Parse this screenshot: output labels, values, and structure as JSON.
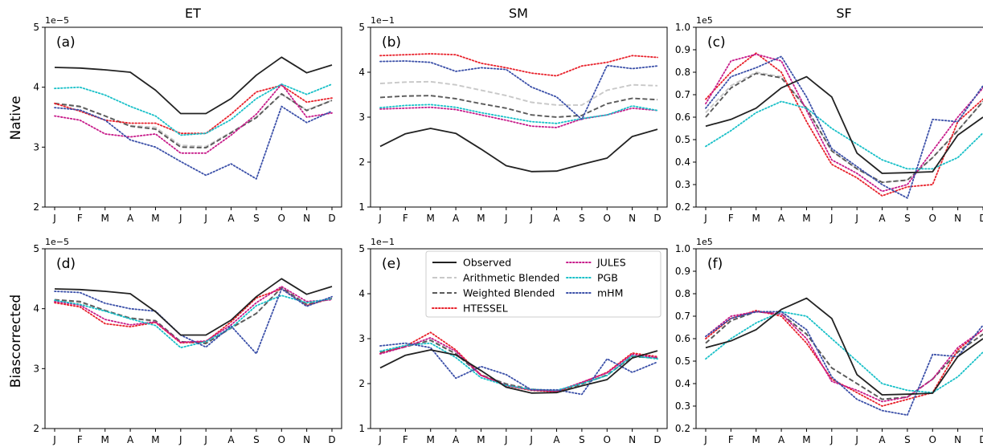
{
  "figure": {
    "col_titles": [
      "ET",
      "SM",
      "SF"
    ],
    "row_labels": [
      "Native",
      "Biascorrected"
    ],
    "months": [
      "J",
      "F",
      "M",
      "A",
      "M",
      "J",
      "J",
      "A",
      "S",
      "O",
      "N",
      "D"
    ]
  },
  "legend": {
    "entries": [
      {
        "name": "Observed",
        "color": "#222222",
        "style": "solid"
      },
      {
        "name": "Arithmetic Blended",
        "color": "#c8c8c8",
        "style": "dashed"
      },
      {
        "name": "Weighted Blended",
        "color": "#5a5a5a",
        "style": "dashed"
      },
      {
        "name": "HTESSEL",
        "color": "#e8202a",
        "style": "dotted"
      },
      {
        "name": "JULES",
        "color": "#c71b8a",
        "style": "dotted"
      },
      {
        "name": "PGB",
        "color": "#18c0c8",
        "style": "dotted"
      },
      {
        "name": "mHM",
        "color": "#3a4fa8",
        "style": "dotted"
      }
    ]
  },
  "chart_data": [
    {
      "type": "line",
      "panel": "(a)",
      "row": 0,
      "col": 0,
      "multiplier": "1e−5",
      "ylim": [
        2,
        5
      ],
      "yticks": [
        "2",
        "3",
        "4",
        "5"
      ],
      "categories": [
        "J",
        "F",
        "M",
        "A",
        "M",
        "J",
        "J",
        "A",
        "S",
        "O",
        "N",
        "D"
      ],
      "series": [
        {
          "name": "Observed",
          "values": [
            4.33,
            4.32,
            4.29,
            4.25,
            3.95,
            3.56,
            3.56,
            3.81,
            4.2,
            4.5,
            4.24,
            4.37
          ]
        },
        {
          "name": "Arithmetic Blended",
          "values": [
            3.72,
            3.67,
            3.52,
            3.36,
            3.33,
            3.03,
            3.01,
            3.25,
            3.5,
            3.88,
            3.62,
            3.78
          ]
        },
        {
          "name": "Weighted Blended",
          "values": [
            3.73,
            3.68,
            3.52,
            3.35,
            3.3,
            3.0,
            2.99,
            3.24,
            3.49,
            3.89,
            3.61,
            3.78
          ]
        },
        {
          "name": "HTESSEL",
          "values": [
            3.73,
            3.6,
            3.45,
            3.4,
            3.4,
            3.23,
            3.23,
            3.55,
            3.92,
            4.03,
            3.75,
            3.82
          ]
        },
        {
          "name": "JULES",
          "values": [
            3.52,
            3.45,
            3.22,
            3.17,
            3.22,
            2.9,
            2.9,
            3.2,
            3.55,
            4.05,
            3.5,
            3.57
          ]
        },
        {
          "name": "PGB",
          "values": [
            3.98,
            4.0,
            3.87,
            3.68,
            3.52,
            3.2,
            3.23,
            3.46,
            3.81,
            4.05,
            3.88,
            4.05
          ]
        },
        {
          "name": "mHM",
          "values": [
            3.66,
            3.62,
            3.45,
            3.12,
            3.0,
            2.76,
            2.53,
            2.72,
            2.47,
            3.68,
            3.41,
            3.6
          ]
        }
      ]
    },
    {
      "type": "line",
      "panel": "(b)",
      "row": 0,
      "col": 1,
      "multiplier": "1e−1",
      "ylim": [
        1,
        5
      ],
      "yticks": [
        "1",
        "2",
        "3",
        "4",
        "5"
      ],
      "categories": [
        "J",
        "F",
        "M",
        "A",
        "M",
        "J",
        "J",
        "A",
        "S",
        "O",
        "N",
        "D"
      ],
      "series": [
        {
          "name": "Observed",
          "values": [
            2.35,
            2.63,
            2.75,
            2.64,
            2.29,
            1.92,
            1.79,
            1.8,
            1.95,
            2.09,
            2.57,
            2.73
          ]
        },
        {
          "name": "Arithmetic Blended",
          "values": [
            3.75,
            3.78,
            3.79,
            3.72,
            3.6,
            3.48,
            3.33,
            3.27,
            3.27,
            3.6,
            3.72,
            3.7
          ]
        },
        {
          "name": "Weighted Blended",
          "values": [
            3.44,
            3.47,
            3.48,
            3.41,
            3.3,
            3.2,
            3.05,
            3.0,
            3.04,
            3.3,
            3.42,
            3.39
          ]
        },
        {
          "name": "HTESSEL",
          "values": [
            4.37,
            4.39,
            4.41,
            4.39,
            4.2,
            4.1,
            3.98,
            3.92,
            4.14,
            4.22,
            4.37,
            4.33
          ]
        },
        {
          "name": "JULES",
          "values": [
            3.18,
            3.2,
            3.22,
            3.17,
            3.05,
            2.93,
            2.8,
            2.77,
            2.96,
            3.05,
            3.2,
            3.15
          ]
        },
        {
          "name": "PGB",
          "values": [
            3.21,
            3.26,
            3.28,
            3.22,
            3.1,
            3.0,
            2.9,
            2.86,
            2.97,
            3.05,
            3.25,
            3.15
          ]
        },
        {
          "name": "mHM",
          "values": [
            4.24,
            4.25,
            4.22,
            4.02,
            4.1,
            4.06,
            3.67,
            3.45,
            2.95,
            4.15,
            4.08,
            4.14
          ]
        }
      ]
    },
    {
      "type": "line",
      "panel": "(c)",
      "row": 0,
      "col": 2,
      "multiplier": "1e5",
      "ylim": [
        0.2,
        1.0
      ],
      "yticks": [
        "0.2",
        "0.3",
        "0.4",
        "0.5",
        "0.6",
        "0.7",
        "0.8",
        "0.9",
        "1.0"
      ],
      "categories": [
        "J",
        "F",
        "M",
        "A",
        "M",
        "J",
        "J",
        "A",
        "S",
        "O",
        "N",
        "D"
      ],
      "series": [
        {
          "name": "Observed",
          "values": [
            0.56,
            0.59,
            0.64,
            0.73,
            0.78,
            0.69,
            0.44,
            0.35,
            0.353,
            0.357,
            0.52,
            0.6
          ]
        },
        {
          "name": "Arithmetic Blended",
          "values": [
            0.62,
            0.74,
            0.8,
            0.78,
            0.64,
            0.45,
            0.37,
            0.31,
            0.32,
            0.42,
            0.54,
            0.67
          ]
        },
        {
          "name": "Weighted Blended",
          "values": [
            0.6,
            0.73,
            0.795,
            0.775,
            0.64,
            0.45,
            0.37,
            0.31,
            0.32,
            0.42,
            0.54,
            0.67
          ]
        },
        {
          "name": "HTESSEL",
          "values": [
            0.68,
            0.8,
            0.885,
            0.8,
            0.58,
            0.39,
            0.33,
            0.25,
            0.29,
            0.3,
            0.58,
            0.68
          ]
        },
        {
          "name": "JULES",
          "values": [
            0.66,
            0.85,
            0.88,
            0.85,
            0.63,
            0.41,
            0.35,
            0.27,
            0.3,
            0.45,
            0.6,
            0.73
          ]
        },
        {
          "name": "PGB",
          "values": [
            0.47,
            0.54,
            0.62,
            0.67,
            0.64,
            0.55,
            0.48,
            0.41,
            0.37,
            0.37,
            0.42,
            0.53
          ]
        },
        {
          "name": "mHM",
          "values": [
            0.64,
            0.78,
            0.82,
            0.87,
            0.69,
            0.46,
            0.38,
            0.3,
            0.24,
            0.59,
            0.58,
            0.74
          ]
        }
      ]
    },
    {
      "type": "line",
      "panel": "(d)",
      "row": 1,
      "col": 0,
      "multiplier": "1e−5",
      "ylim": [
        2,
        5
      ],
      "yticks": [
        "2",
        "3",
        "4",
        "5"
      ],
      "categories": [
        "J",
        "F",
        "M",
        "A",
        "M",
        "J",
        "J",
        "A",
        "S",
        "O",
        "N",
        "D"
      ],
      "series": [
        {
          "name": "Observed",
          "values": [
            4.33,
            4.32,
            4.29,
            4.25,
            3.95,
            3.56,
            3.56,
            3.81,
            4.2,
            4.5,
            4.24,
            4.37
          ]
        },
        {
          "name": "Arithmetic Blended",
          "values": [
            4.14,
            4.1,
            3.97,
            3.85,
            3.78,
            3.44,
            3.43,
            3.67,
            3.92,
            4.35,
            4.07,
            4.16
          ]
        },
        {
          "name": "Weighted Blended",
          "values": [
            4.15,
            4.12,
            3.97,
            3.84,
            3.8,
            3.45,
            3.42,
            3.68,
            3.92,
            4.35,
            4.07,
            4.17
          ]
        },
        {
          "name": "HTESSEL",
          "values": [
            4.1,
            4.03,
            3.75,
            3.7,
            3.77,
            3.43,
            3.45,
            3.78,
            4.18,
            4.33,
            4.05,
            4.18
          ]
        },
        {
          "name": "JULES",
          "values": [
            4.12,
            4.06,
            3.82,
            3.73,
            3.78,
            3.44,
            3.46,
            3.73,
            4.1,
            4.37,
            4.12,
            4.15
          ]
        },
        {
          "name": "PGB",
          "values": [
            4.14,
            4.07,
            3.96,
            3.83,
            3.72,
            3.35,
            3.45,
            3.68,
            4.05,
            4.22,
            4.1,
            4.17
          ]
        },
        {
          "name": "mHM",
          "values": [
            4.29,
            4.27,
            4.09,
            4.0,
            3.96,
            3.56,
            3.36,
            3.71,
            3.25,
            4.33,
            4.04,
            4.2
          ]
        }
      ]
    },
    {
      "type": "line",
      "panel": "(e)",
      "row": 1,
      "col": 1,
      "multiplier": "1e−1",
      "ylim": [
        1,
        5
      ],
      "yticks": [
        "1",
        "2",
        "3",
        "4",
        "5"
      ],
      "categories": [
        "J",
        "F",
        "M",
        "A",
        "M",
        "J",
        "J",
        "A",
        "S",
        "O",
        "N",
        "D"
      ],
      "series": [
        {
          "name": "Observed",
          "values": [
            2.35,
            2.63,
            2.75,
            2.64,
            2.29,
            1.92,
            1.79,
            1.8,
            1.95,
            2.09,
            2.57,
            2.73
          ]
        },
        {
          "name": "Arithmetic Blended",
          "values": [
            2.7,
            2.83,
            2.98,
            2.68,
            2.2,
            2.0,
            1.88,
            1.84,
            2.0,
            2.2,
            2.6,
            2.57
          ]
        },
        {
          "name": "Weighted Blended",
          "values": [
            2.69,
            2.82,
            2.96,
            2.66,
            2.19,
            1.99,
            1.87,
            1.83,
            1.99,
            2.19,
            2.6,
            2.57
          ]
        },
        {
          "name": "HTESSEL",
          "values": [
            2.67,
            2.83,
            3.14,
            2.75,
            2.19,
            1.95,
            1.85,
            1.82,
            2.02,
            2.25,
            2.68,
            2.6
          ]
        },
        {
          "name": "JULES",
          "values": [
            2.66,
            2.82,
            3.02,
            2.72,
            2.18,
            1.96,
            1.86,
            1.83,
            2.03,
            2.24,
            2.65,
            2.58
          ]
        },
        {
          "name": "PGB",
          "values": [
            2.72,
            2.85,
            2.9,
            2.58,
            2.13,
            1.96,
            1.87,
            1.85,
            2.0,
            2.18,
            2.62,
            2.55
          ]
        },
        {
          "name": "mHM",
          "values": [
            2.84,
            2.9,
            2.8,
            2.12,
            2.38,
            2.2,
            1.86,
            1.86,
            1.76,
            2.55,
            2.25,
            2.48
          ]
        }
      ]
    },
    {
      "type": "line",
      "panel": "(f)",
      "row": 1,
      "col": 2,
      "multiplier": "1e5",
      "ylim": [
        0.2,
        1.0
      ],
      "yticks": [
        "0.2",
        "0.3",
        "0.4",
        "0.5",
        "0.6",
        "0.7",
        "0.8",
        "0.9",
        "1.0"
      ],
      "categories": [
        "J",
        "F",
        "M",
        "A",
        "M",
        "J",
        "J",
        "A",
        "S",
        "O",
        "N",
        "D"
      ],
      "series": [
        {
          "name": "Observed",
          "values": [
            0.56,
            0.59,
            0.64,
            0.73,
            0.78,
            0.69,
            0.44,
            0.35,
            0.353,
            0.357,
            0.52,
            0.6
          ]
        },
        {
          "name": "Arithmetic Blended",
          "values": [
            0.58,
            0.68,
            0.72,
            0.71,
            0.62,
            0.47,
            0.4,
            0.33,
            0.34,
            0.42,
            0.54,
            0.62
          ]
        },
        {
          "name": "Weighted Blended",
          "values": [
            0.58,
            0.68,
            0.72,
            0.71,
            0.62,
            0.47,
            0.4,
            0.33,
            0.34,
            0.42,
            0.54,
            0.62
          ]
        },
        {
          "name": "HTESSEL",
          "values": [
            0.6,
            0.69,
            0.725,
            0.7,
            0.58,
            0.42,
            0.36,
            0.3,
            0.33,
            0.36,
            0.55,
            0.64
          ]
        },
        {
          "name": "JULES",
          "values": [
            0.61,
            0.7,
            0.72,
            0.71,
            0.6,
            0.41,
            0.37,
            0.32,
            0.34,
            0.42,
            0.56,
            0.64
          ]
        },
        {
          "name": "PGB",
          "values": [
            0.51,
            0.6,
            0.67,
            0.72,
            0.7,
            0.6,
            0.5,
            0.4,
            0.37,
            0.36,
            0.43,
            0.54
          ]
        },
        {
          "name": "mHM",
          "values": [
            0.61,
            0.69,
            0.72,
            0.72,
            0.64,
            0.43,
            0.33,
            0.28,
            0.26,
            0.53,
            0.52,
            0.66
          ]
        }
      ]
    }
  ]
}
